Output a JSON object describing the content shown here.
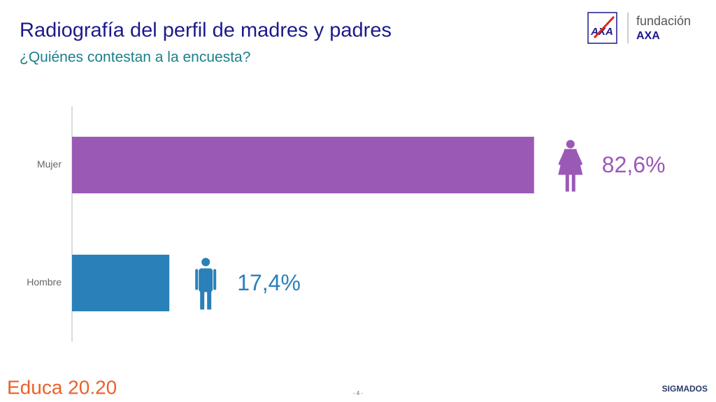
{
  "chart_data": {
    "type": "hbar",
    "title": "Radiografía del perfil de madres y padres",
    "subtitle": "¿Quiénes contestan a la encuesta?",
    "categories": [
      "Mujer",
      "Hombre"
    ],
    "values": [
      82.6,
      17.4
    ],
    "value_labels": [
      "82,6%",
      "17,4%"
    ],
    "colors": [
      "#9b59b6",
      "#2a80b9"
    ],
    "xlim": [
      0,
      100
    ]
  },
  "logos": {
    "axa": "AXA",
    "foundation_top": "fundación",
    "foundation_bottom": "AXA",
    "educa": "Educa 20.20",
    "sigmados": "SIGMADOS"
  },
  "page_number": "- 4 -"
}
